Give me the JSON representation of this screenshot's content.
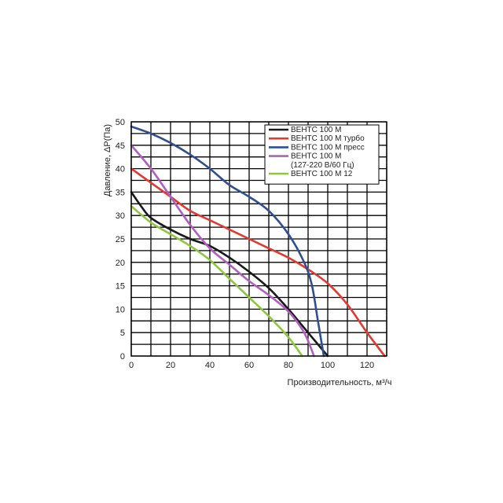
{
  "chart_data": {
    "type": "line",
    "xlabel": "Производительность, м³/ч",
    "ylabel": "Давление, ΔP(Па)",
    "xlim": [
      0,
      130
    ],
    "ylim": [
      0,
      50
    ],
    "x_ticks": [
      0,
      20,
      40,
      60,
      80,
      100,
      120
    ],
    "y_ticks": [
      0,
      5,
      10,
      15,
      20,
      25,
      30,
      35,
      40,
      45,
      50
    ],
    "grid": true,
    "legend_position": "top-right",
    "series": [
      {
        "name": "ВЕНТС 100 М",
        "color": "#1a1a1a",
        "points": [
          [
            0,
            35
          ],
          [
            5,
            32
          ],
          [
            10,
            29.5
          ],
          [
            20,
            27
          ],
          [
            30,
            25
          ],
          [
            40,
            23.5
          ],
          [
            50,
            21
          ],
          [
            60,
            18
          ],
          [
            70,
            14.5
          ],
          [
            80,
            10
          ],
          [
            90,
            5
          ],
          [
            100,
            0
          ]
        ]
      },
      {
        "name": "ВЕНТС 100 М турбо",
        "color": "#e23a32",
        "points": [
          [
            0,
            40
          ],
          [
            10,
            37
          ],
          [
            20,
            34
          ],
          [
            30,
            31
          ],
          [
            40,
            29
          ],
          [
            50,
            27
          ],
          [
            60,
            25
          ],
          [
            70,
            23
          ],
          [
            80,
            21
          ],
          [
            90,
            18.5
          ],
          [
            100,
            15.5
          ],
          [
            110,
            11
          ],
          [
            120,
            5
          ],
          [
            129,
            0
          ]
        ]
      },
      {
        "name": "ВЕНТС 100 М пресс",
        "color": "#2f4f92",
        "points": [
          [
            0,
            49
          ],
          [
            10,
            47.5
          ],
          [
            20,
            45.5
          ],
          [
            30,
            43
          ],
          [
            40,
            40
          ],
          [
            50,
            36.5
          ],
          [
            60,
            34
          ],
          [
            70,
            31
          ],
          [
            80,
            26
          ],
          [
            88,
            20
          ],
          [
            92,
            15
          ],
          [
            95,
            7.5
          ],
          [
            98,
            0
          ]
        ]
      },
      {
        "name": "ВЕНТС 100 М",
        "name_line2": "(127-220 В/60 Гц)",
        "color": "#b15fbe",
        "points": [
          [
            0,
            45
          ],
          [
            10,
            40
          ],
          [
            20,
            34
          ],
          [
            30,
            28
          ],
          [
            40,
            23
          ],
          [
            50,
            19.5
          ],
          [
            60,
            16
          ],
          [
            70,
            13
          ],
          [
            80,
            9.5
          ],
          [
            88,
            5
          ],
          [
            93,
            0
          ]
        ]
      },
      {
        "name": "ВЕНТС 100 М 12",
        "color": "#8ec63f",
        "points": [
          [
            0,
            32
          ],
          [
            10,
            28.5
          ],
          [
            20,
            26
          ],
          [
            30,
            23.5
          ],
          [
            40,
            20.5
          ],
          [
            50,
            16.5
          ],
          [
            60,
            12.5
          ],
          [
            70,
            8.5
          ],
          [
            80,
            4
          ],
          [
            87,
            0
          ]
        ]
      }
    ]
  }
}
